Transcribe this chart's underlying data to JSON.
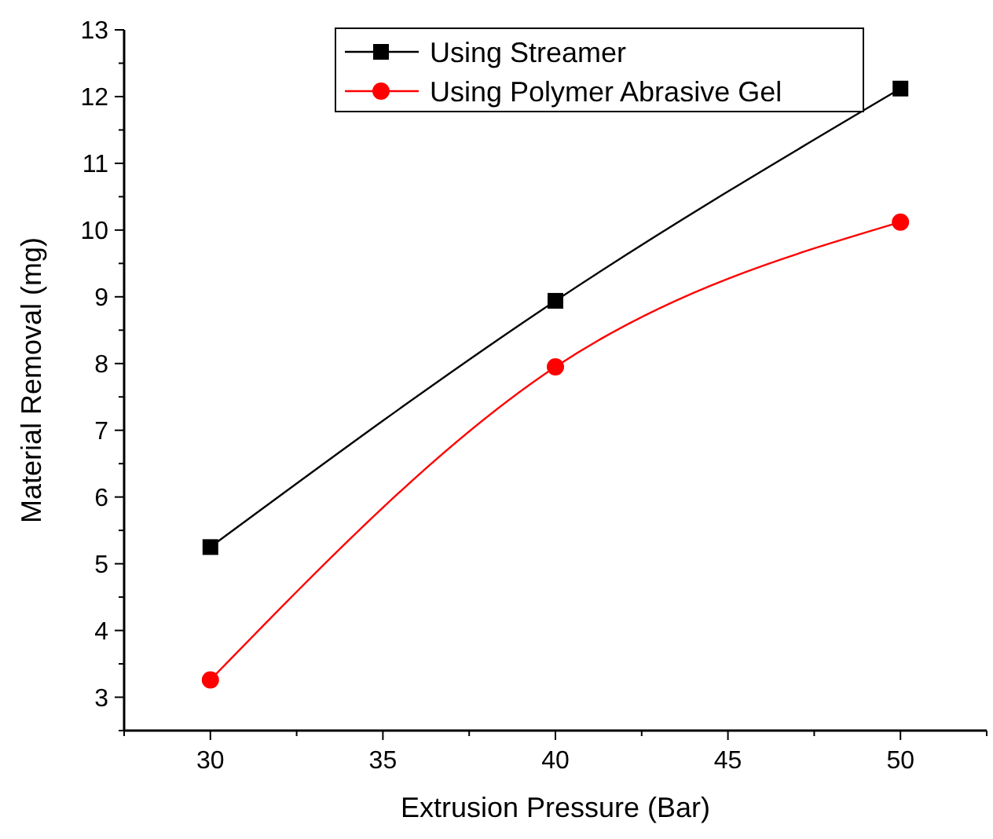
{
  "chart_data": {
    "type": "line",
    "xlabel": "Extrusion Pressure (Bar)",
    "ylabel": "Material Removal (mg)",
    "x": [
      30,
      40,
      50
    ],
    "series": [
      {
        "name": "Using Streamer",
        "color": "#000000",
        "marker": "square",
        "values": [
          5.25,
          8.94,
          12.12
        ]
      },
      {
        "name": "Using Polymer Abrasive Gel",
        "color": "#ff0000",
        "marker": "circle",
        "values": [
          3.26,
          7.95,
          10.12
        ]
      }
    ],
    "xlim": [
      27.5,
      52.5
    ],
    "xticks": [
      30,
      35,
      40,
      45,
      50
    ],
    "ylim": [
      2.5,
      13
    ],
    "yticks": [
      3,
      4,
      5,
      6,
      7,
      8,
      9,
      10,
      11,
      12,
      13
    ],
    "grid": false,
    "legend": "top"
  }
}
